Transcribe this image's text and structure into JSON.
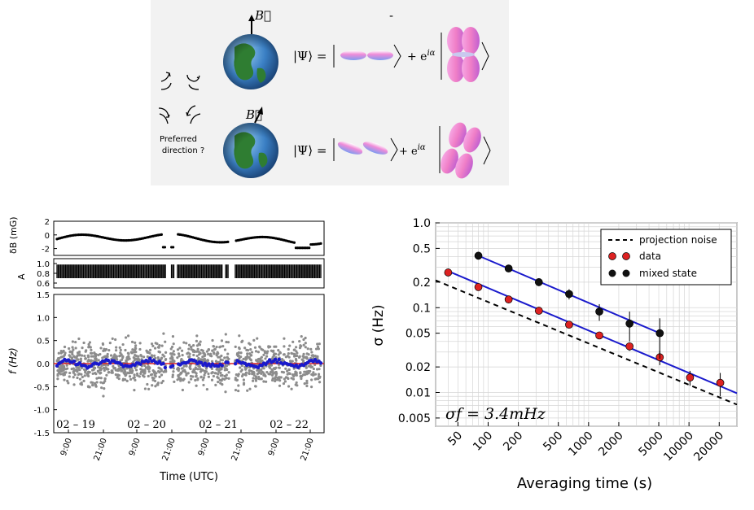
{
  "schematic": {
    "b_label": "B⃗",
    "psi_label": "|Ψ⟩ =",
    "plus_phase": "+ e",
    "phase_exp": "iα",
    "minus_mark": "-",
    "preferred_line1": "Preferred",
    "preferred_line2": "direction ?"
  },
  "colors": {
    "red": "#dd2222",
    "black": "#111111",
    "blue": "#1a1acc",
    "grey": "#8c8c8c",
    "ocean": "#3a7fc4",
    "land": "#2f7d32",
    "orbital_pink": "#f08cd8",
    "orbital_blue": "#7f9cf0"
  },
  "chart_data": [
    {
      "type": "scatter",
      "panel": "time-series",
      "y_label_top": "δB  (mG)",
      "y_label_mid": "A",
      "y_label_bottom": "f (Hz)",
      "x_label": "Time (UTC)",
      "x_ticks": [
        "9:00",
        "21:00",
        "9:00",
        "21:00",
        "9:00",
        "21:00",
        "9:00",
        "21:00"
      ],
      "dates": [
        "02 – 19",
        "02 – 20",
        "02 – 21",
        "02 – 22"
      ],
      "dB_ticks": [
        "2",
        "0",
        "-2"
      ],
      "dB_ylim": [
        -3,
        2
      ],
      "A_ticks": [
        "1.0",
        "0.8",
        "0.6"
      ],
      "A_ylim": [
        0.5,
        1.1
      ],
      "f_ticks": [
        "1.5",
        "1.0",
        "0.5",
        "0.0",
        "-0.5",
        "-1.0",
        "-1.5"
      ],
      "f_ylim": [
        -1.5,
        1.5
      ]
    },
    {
      "type": "line",
      "panel": "allan-deviation",
      "xlabel": "Averaging time (s)",
      "ylabel": "σ (Hz)",
      "xscale": "log",
      "yscale": "log",
      "xlim": [
        30,
        30000
      ],
      "ylim": [
        0.004,
        1.0
      ],
      "x_ticks": [
        50,
        100,
        200,
        500,
        1000,
        2000,
        5000,
        10000,
        20000
      ],
      "y_ticks": [
        1.0,
        0.5,
        0.2,
        0.1,
        0.05,
        0.02,
        0.01,
        0.005
      ],
      "y_tick_labels": [
        "1.0",
        "0.5",
        "0.2",
        "0.1",
        "0.05",
        "0.02",
        "0.01",
        "0.005"
      ],
      "annotation": "σf = 3.4mHz",
      "legend_position": "top-right",
      "grid": true,
      "series": [
        {
          "name": "projection noise",
          "style": "dashed",
          "x": [
            30,
            30000
          ],
          "y": [
            0.21,
            0.0072
          ]
        },
        {
          "name": "data",
          "marker": "red",
          "x": [
            40,
            80,
            160,
            320,
            640,
            1280,
            2560,
            5120,
            10240,
            20480
          ],
          "y": [
            0.26,
            0.175,
            0.125,
            0.092,
            0.063,
            0.047,
            0.035,
            0.026,
            0.015,
            0.013
          ],
          "err": [
            0.01,
            0.008,
            0.006,
            0.005,
            0.004,
            0.004,
            0.004,
            0.005,
            0.003,
            0.004
          ]
        },
        {
          "name": "mixed state",
          "marker": "black",
          "x": [
            80,
            160,
            320,
            640,
            1280,
            2560,
            5120
          ],
          "y": [
            0.41,
            0.29,
            0.2,
            0.145,
            0.09,
            0.065,
            0.05
          ],
          "err": [
            0.02,
            0.02,
            0.02,
            0.02,
            0.02,
            0.025,
            0.025
          ]
        },
        {
          "name": "",
          "style": "fit-blue",
          "x": [
            40,
            30000
          ],
          "y": [
            0.27,
            0.0098
          ]
        },
        {
          "name": "",
          "style": "fit-blue",
          "x": [
            80,
            5120
          ],
          "y": [
            0.41,
            0.05
          ]
        }
      ]
    }
  ]
}
